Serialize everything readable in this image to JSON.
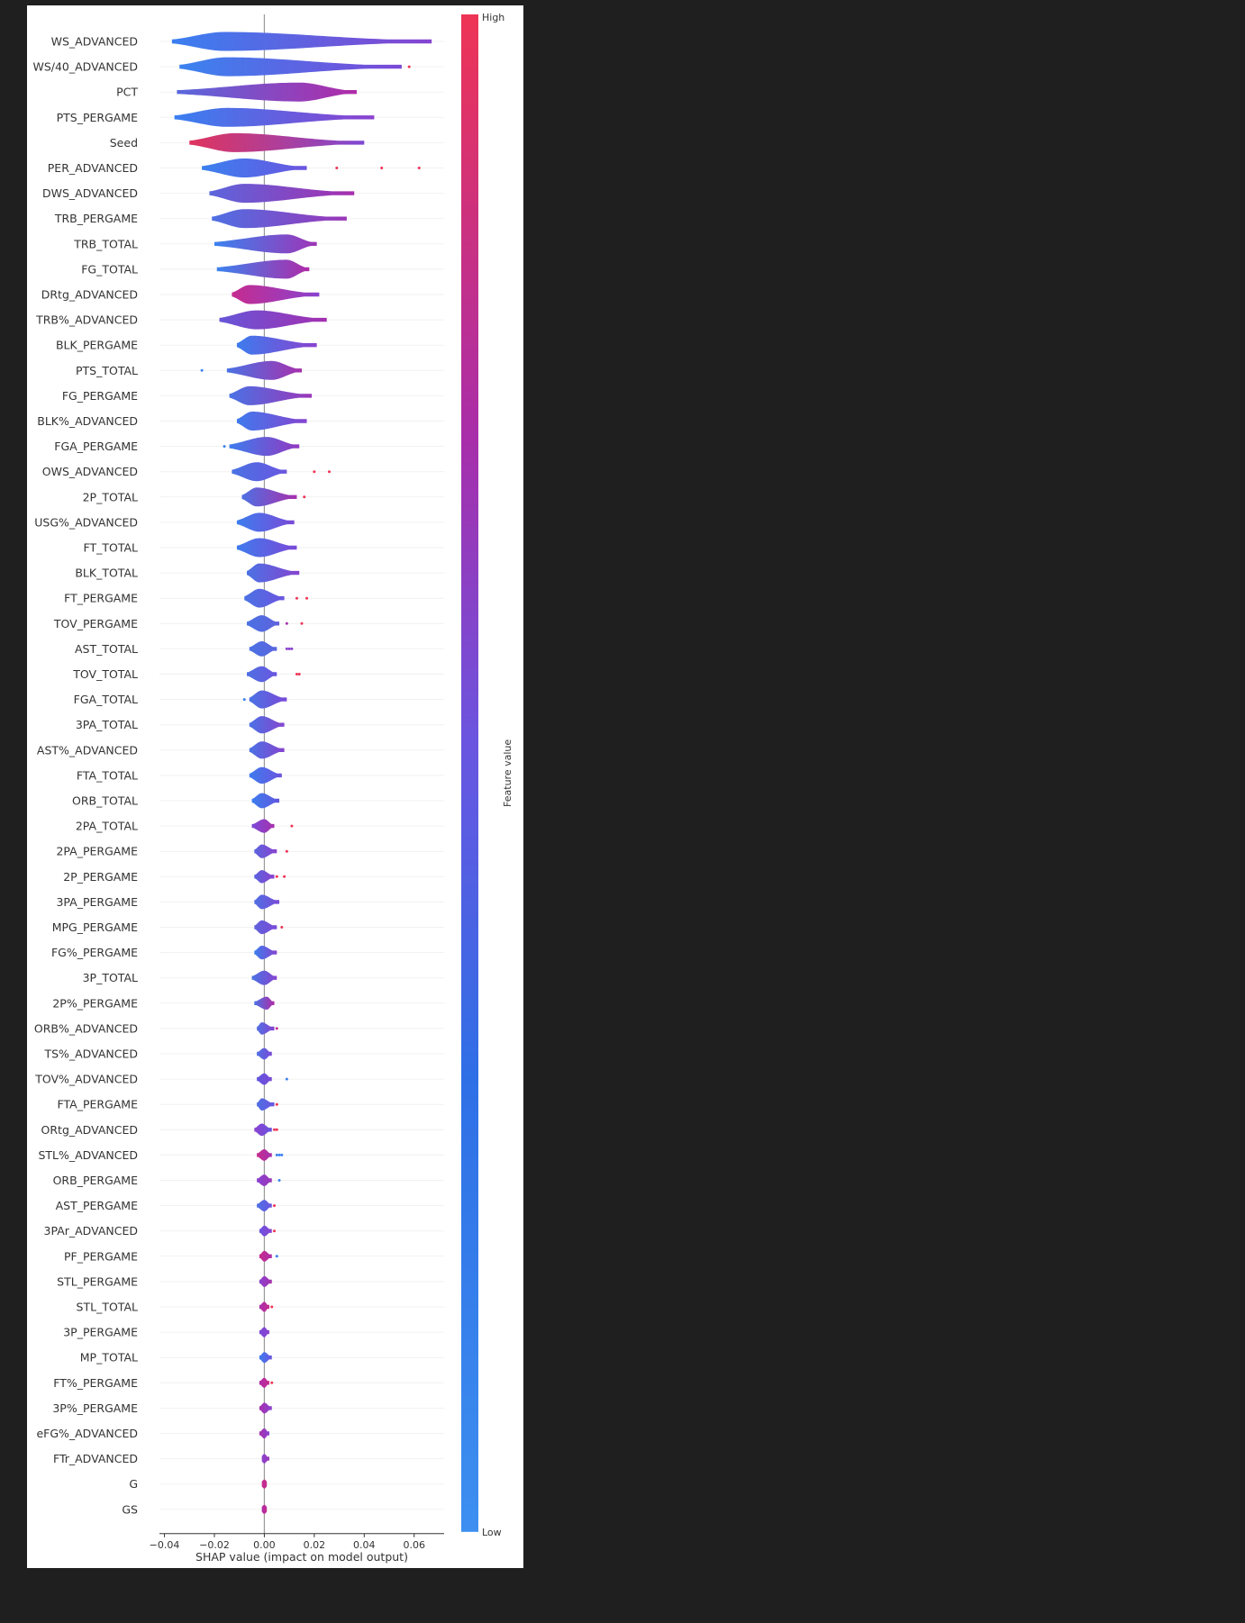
{
  "chart_data": {
    "type": "violin",
    "xlabel": "SHAP value (impact on model output)",
    "xlim": [
      -0.042,
      0.072
    ],
    "xticks": [
      -0.04,
      -0.02,
      0.0,
      0.02,
      0.04,
      0.06
    ],
    "xtick_labels": [
      "−0.04",
      "−0.02",
      "0.00",
      "0.02",
      "0.04",
      "0.06"
    ],
    "colorbar": {
      "label": "Feature value",
      "high_label": "High",
      "low_label": "Low",
      "low_color": "#3d8ff0",
      "high_color": "#ee3455"
    },
    "features": [
      {
        "name": "WS_ADVANCED",
        "min": -0.037,
        "max": 0.067,
        "c_low": "#3a7ff0",
        "c_high": "#8544d0",
        "mode": -0.016
      },
      {
        "name": "WS/40_ADVANCED",
        "min": -0.034,
        "max": 0.055,
        "c_low": "#3b83ef",
        "c_high": "#7a49d8",
        "mode": -0.015,
        "outliers": [
          {
            "x": 0.058,
            "c": "#ee3455"
          }
        ]
      },
      {
        "name": "PCT",
        "min": -0.035,
        "max": 0.037,
        "c_low": "#5a68dc",
        "c_high": "#b02ba8",
        "mode": 0.014
      },
      {
        "name": "PTS_PERGAME",
        "min": -0.036,
        "max": 0.044,
        "c_low": "#3a7ff0",
        "c_high": "#8a42cf",
        "mode": -0.015
      },
      {
        "name": "Seed",
        "min": -0.03,
        "max": 0.04,
        "c_low": "#e0345e",
        "c_high": "#7e48d2",
        "mode": -0.012
      },
      {
        "name": "PER_ADVANCED",
        "min": -0.025,
        "max": 0.017,
        "c_low": "#3b80ef",
        "c_high": "#6a55e0",
        "mode": -0.008,
        "outliers": [
          {
            "x": 0.029,
            "c": "#ee3455"
          },
          {
            "x": 0.047,
            "c": "#ee3455"
          },
          {
            "x": 0.062,
            "c": "#ee3455"
          }
        ]
      },
      {
        "name": "DWS_ADVANCED",
        "min": -0.022,
        "max": 0.036,
        "c_low": "#5b66dc",
        "c_high": "#a62eae",
        "mode": -0.008
      },
      {
        "name": "TRB_PERGAME",
        "min": -0.021,
        "max": 0.033,
        "c_low": "#4f70e3",
        "c_high": "#9b36b8",
        "mode": -0.008
      },
      {
        "name": "TRB_TOTAL",
        "min": -0.02,
        "max": 0.021,
        "c_low": "#3b82ef",
        "c_high": "#9f34b6",
        "mode": 0.009
      },
      {
        "name": "FG_TOTAL",
        "min": -0.019,
        "max": 0.018,
        "c_low": "#3b82ef",
        "c_high": "#b02ba8",
        "mode": 0.009
      },
      {
        "name": "DRtg_ADVANCED",
        "min": -0.013,
        "max": 0.022,
        "c_low": "#c52c8f",
        "c_high": "#8a42cf",
        "mode": -0.006
      },
      {
        "name": "TRB%_ADVANCED",
        "min": -0.018,
        "max": 0.025,
        "c_low": "#6656d8",
        "c_high": "#a42fb0",
        "mode": -0.003
      },
      {
        "name": "BLK_PERGAME",
        "min": -0.011,
        "max": 0.021,
        "c_low": "#3d7cee",
        "c_high": "#8a42cf",
        "mode": -0.005
      },
      {
        "name": "PTS_TOTAL",
        "min": -0.015,
        "max": 0.015,
        "c_low": "#4b72e4",
        "c_high": "#a731ad",
        "mode": 0.003,
        "outliers": [
          {
            "x": -0.025,
            "c": "#3b82ef"
          }
        ]
      },
      {
        "name": "FG_PERGAME",
        "min": -0.014,
        "max": 0.019,
        "c_low": "#4a72e4",
        "c_high": "#9a37b9",
        "mode": -0.006
      },
      {
        "name": "BLK%_ADVANCED",
        "min": -0.011,
        "max": 0.017,
        "c_low": "#3f7aed",
        "c_high": "#8544d0",
        "mode": -0.005
      },
      {
        "name": "FGA_PERGAME",
        "min": -0.014,
        "max": 0.014,
        "c_low": "#3d7dee",
        "c_high": "#9239c0",
        "mode": 0.001,
        "outliers": [
          {
            "x": -0.016,
            "c": "#3b82ef"
          }
        ]
      },
      {
        "name": "OWS_ADVANCED",
        "min": -0.013,
        "max": 0.009,
        "c_low": "#4a72e4",
        "c_high": "#6a55e0",
        "mode": -0.003,
        "outliers": [
          {
            "x": 0.02,
            "c": "#ee3455"
          },
          {
            "x": 0.026,
            "c": "#ee3455"
          }
        ]
      },
      {
        "name": "2P_TOTAL",
        "min": -0.009,
        "max": 0.013,
        "c_low": "#4e70e3",
        "c_high": "#a731ad",
        "mode": -0.003,
        "outliers": [
          {
            "x": 0.016,
            "c": "#ee3455"
          }
        ]
      },
      {
        "name": "USG%_ADVANCED",
        "min": -0.011,
        "max": 0.012,
        "c_low": "#3d7dee",
        "c_high": "#7a4ad8",
        "mode": -0.002
      },
      {
        "name": "FT_TOTAL",
        "min": -0.011,
        "max": 0.013,
        "c_low": "#3f7aed",
        "c_high": "#7a4ad8",
        "mode": -0.002
      },
      {
        "name": "BLK_TOTAL",
        "min": -0.007,
        "max": 0.014,
        "c_low": "#4b72e4",
        "c_high": "#8544d0",
        "mode": -0.002
      },
      {
        "name": "FT_PERGAME",
        "min": -0.008,
        "max": 0.008,
        "c_low": "#4b72e4",
        "c_high": "#6b55e0",
        "mode": -0.002,
        "outliers": [
          {
            "x": 0.013,
            "c": "#ee3455"
          },
          {
            "x": 0.017,
            "c": "#ee3455"
          }
        ]
      },
      {
        "name": "TOV_PERGAME",
        "min": -0.007,
        "max": 0.006,
        "c_low": "#4a72e4",
        "c_high": "#5f62dc",
        "mode": -0.001,
        "outliers": [
          {
            "x": 0.009,
            "c": "#a731ad"
          },
          {
            "x": 0.015,
            "c": "#ee3455"
          }
        ]
      },
      {
        "name": "AST_TOTAL",
        "min": -0.006,
        "max": 0.005,
        "c_low": "#4b72e4",
        "c_high": "#5a64de",
        "mode": -0.001,
        "outliers": [
          {
            "x": 0.009,
            "c": "#8a42cf"
          },
          {
            "x": 0.01,
            "c": "#8a42cf"
          },
          {
            "x": 0.011,
            "c": "#8a42cf"
          }
        ]
      },
      {
        "name": "TOV_TOTAL",
        "min": -0.007,
        "max": 0.005,
        "c_low": "#4f70e3",
        "c_high": "#6a55e0",
        "mode": -0.001,
        "outliers": [
          {
            "x": 0.013,
            "c": "#ee3455"
          },
          {
            "x": 0.014,
            "c": "#ee3455"
          }
        ]
      },
      {
        "name": "FGA_TOTAL",
        "min": -0.006,
        "max": 0.009,
        "c_low": "#4b72e4",
        "c_high": "#7a4ad8",
        "mode": -0.001,
        "outliers": [
          {
            "x": -0.008,
            "c": "#3b82ef"
          }
        ]
      },
      {
        "name": "3PA_TOTAL",
        "min": -0.006,
        "max": 0.008,
        "c_low": "#4b72e4",
        "c_high": "#8544d0",
        "mode": -0.001
      },
      {
        "name": "AST%_ADVANCED",
        "min": -0.006,
        "max": 0.008,
        "c_low": "#4a72e4",
        "c_high": "#8544d0",
        "mode": -0.001
      },
      {
        "name": "FTA_TOTAL",
        "min": -0.006,
        "max": 0.007,
        "c_low": "#3f7aed",
        "c_high": "#6a55e0",
        "mode": -0.001
      },
      {
        "name": "ORB_TOTAL",
        "min": -0.005,
        "max": 0.006,
        "c_low": "#3d7dee",
        "c_high": "#6056de",
        "mode": -0.001
      },
      {
        "name": "2PA_TOTAL",
        "min": -0.005,
        "max": 0.004,
        "c_low": "#7a4ad8",
        "c_high": "#a731ad",
        "mode": 0.0,
        "outliers": [
          {
            "x": 0.011,
            "c": "#ee3455"
          }
        ]
      },
      {
        "name": "2PA_PERGAME",
        "min": -0.004,
        "max": 0.005,
        "c_low": "#5a64de",
        "c_high": "#8a42cf",
        "mode": -0.001,
        "outliers": [
          {
            "x": 0.009,
            "c": "#ee3455"
          }
        ]
      },
      {
        "name": "2P_PERGAME",
        "min": -0.004,
        "max": 0.004,
        "c_low": "#5a64de",
        "c_high": "#8a42cf",
        "mode": -0.001,
        "outliers": [
          {
            "x": 0.005,
            "c": "#ee3455"
          },
          {
            "x": 0.008,
            "c": "#ee3455"
          }
        ]
      },
      {
        "name": "3PA_PERGAME",
        "min": -0.004,
        "max": 0.006,
        "c_low": "#4f70e3",
        "c_high": "#7a4ad8",
        "mode": -0.001
      },
      {
        "name": "MPG_PERGAME",
        "min": -0.004,
        "max": 0.005,
        "c_low": "#5f62dc",
        "c_high": "#7a4ad8",
        "mode": -0.001,
        "outliers": [
          {
            "x": 0.007,
            "c": "#ee3455"
          }
        ]
      },
      {
        "name": "FG%_PERGAME",
        "min": -0.004,
        "max": 0.005,
        "c_low": "#3d7dee",
        "c_high": "#8544d0",
        "mode": -0.001
      },
      {
        "name": "3P_TOTAL",
        "min": -0.005,
        "max": 0.005,
        "c_low": "#4a72e4",
        "c_high": "#8544d0",
        "mode": 0.0
      },
      {
        "name": "2P%_PERGAME",
        "min": -0.004,
        "max": 0.004,
        "c_low": "#4a72e4",
        "c_high": "#b02ba8",
        "mode": 0.001
      },
      {
        "name": "ORB%_ADVANCED",
        "min": -0.003,
        "max": 0.004,
        "c_low": "#4f70e3",
        "c_high": "#8544d0",
        "mode": -0.001,
        "outliers": [
          {
            "x": 0.005,
            "c": "#c52c8f"
          }
        ]
      },
      {
        "name": "TS%_ADVANCED",
        "min": -0.003,
        "max": 0.003,
        "c_low": "#4f70e3",
        "c_high": "#7a4ad8",
        "mode": 0.0
      },
      {
        "name": "TOV%_ADVANCED",
        "min": -0.003,
        "max": 0.003,
        "c_low": "#6056de",
        "c_high": "#7a4ad8",
        "mode": 0.0,
        "outliers": [
          {
            "x": 0.009,
            "c": "#3b82ef"
          }
        ]
      },
      {
        "name": "FTA_PERGAME",
        "min": -0.003,
        "max": 0.004,
        "c_low": "#4f70e3",
        "c_high": "#6a55e0",
        "mode": -0.001,
        "outliers": [
          {
            "x": 0.005,
            "c": "#ee3455"
          }
        ]
      },
      {
        "name": "ORtg_ADVANCED",
        "min": -0.004,
        "max": 0.003,
        "c_low": "#8a42cf",
        "c_high": "#6a55e0",
        "mode": -0.001,
        "outliers": [
          {
            "x": 0.004,
            "c": "#ee3455"
          },
          {
            "x": 0.005,
            "c": "#ee3455"
          }
        ]
      },
      {
        "name": "STL%_ADVANCED",
        "min": -0.003,
        "max": 0.003,
        "c_low": "#c52c8f",
        "c_high": "#a731ad",
        "mode": 0.0,
        "outliers": [
          {
            "x": 0.005,
            "c": "#3b82ef"
          },
          {
            "x": 0.006,
            "c": "#3b82ef"
          },
          {
            "x": 0.007,
            "c": "#3b82ef"
          }
        ]
      },
      {
        "name": "ORB_PERGAME",
        "min": -0.003,
        "max": 0.003,
        "c_low": "#8a42cf",
        "c_high": "#9a37b9",
        "mode": 0.0,
        "outliers": [
          {
            "x": 0.006,
            "c": "#3b82ef"
          }
        ]
      },
      {
        "name": "AST_PERGAME",
        "min": -0.003,
        "max": 0.003,
        "c_low": "#4f70e3",
        "c_high": "#6a55e0",
        "mode": 0.0,
        "outliers": [
          {
            "x": 0.004,
            "c": "#ee3455"
          }
        ]
      },
      {
        "name": "3PAr_ADVANCED",
        "min": -0.002,
        "max": 0.003,
        "c_low": "#6a55e0",
        "c_high": "#8a42cf",
        "mode": 0.0,
        "outliers": [
          {
            "x": 0.004,
            "c": "#ee3455"
          }
        ]
      },
      {
        "name": "PF_PERGAME",
        "min": -0.002,
        "max": 0.003,
        "c_low": "#c52c8f",
        "c_high": "#b02ba8",
        "mode": 0.0,
        "outliers": [
          {
            "x": 0.005,
            "c": "#3b82ef"
          }
        ]
      },
      {
        "name": "STL_PERGAME",
        "min": -0.002,
        "max": 0.003,
        "c_low": "#8a42cf",
        "c_high": "#a731ad",
        "mode": 0.0
      },
      {
        "name": "STL_TOTAL",
        "min": -0.002,
        "max": 0.002,
        "c_low": "#a731ad",
        "c_high": "#c52c8f",
        "mode": 0.0,
        "outliers": [
          {
            "x": 0.003,
            "c": "#ee3455"
          }
        ]
      },
      {
        "name": "3P_PERGAME",
        "min": -0.002,
        "max": 0.002,
        "c_low": "#7a4ad8",
        "c_high": "#8a42cf",
        "mode": 0.0
      },
      {
        "name": "MP_TOTAL",
        "min": -0.002,
        "max": 0.003,
        "c_low": "#3d7dee",
        "c_high": "#6a55e0",
        "mode": 0.0
      },
      {
        "name": "FT%_PERGAME",
        "min": -0.002,
        "max": 0.002,
        "c_low": "#b02ba8",
        "c_high": "#c52c8f",
        "mode": 0.0,
        "outliers": [
          {
            "x": 0.003,
            "c": "#ee3455"
          }
        ]
      },
      {
        "name": "3P%_PERGAME",
        "min": -0.002,
        "max": 0.003,
        "c_low": "#a731ad",
        "c_high": "#8a42cf",
        "mode": 0.0
      },
      {
        "name": "eFG%_ADVANCED",
        "min": -0.002,
        "max": 0.002,
        "c_low": "#a731ad",
        "c_high": "#8a42cf",
        "mode": 0.0
      },
      {
        "name": "FTr_ADVANCED",
        "min": -0.001,
        "max": 0.002,
        "c_low": "#8a42cf",
        "c_high": "#9a37b9",
        "mode": 0.0
      },
      {
        "name": "G",
        "min": -0.001,
        "max": 0.001,
        "c_low": "#c52c8f",
        "c_high": "#c52c8f",
        "mode": 0.0
      },
      {
        "name": "GS",
        "min": -0.001,
        "max": 0.001,
        "c_low": "#b02ba8",
        "c_high": "#c52c8f",
        "mode": 0.0
      }
    ]
  }
}
